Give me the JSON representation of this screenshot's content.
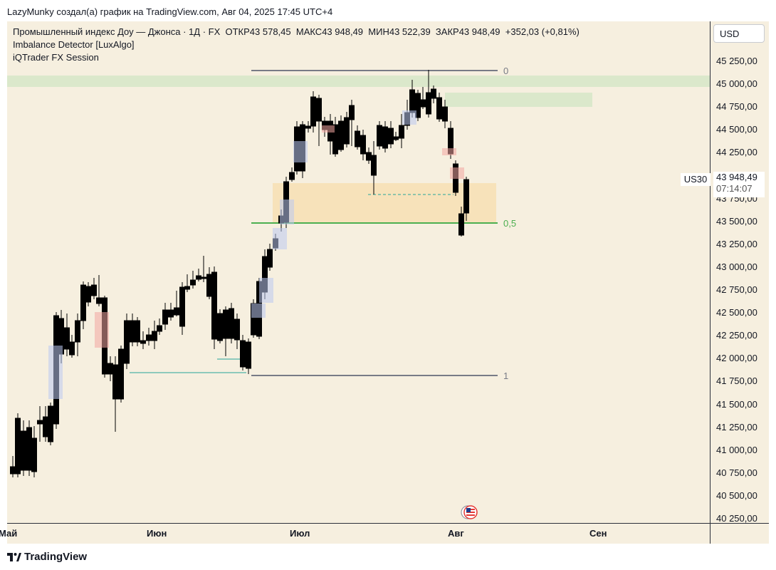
{
  "header": {
    "attribution": "LazyMunky создал(а) график на TradingView.com, Авг 04, 2025 17:45 UTC+4"
  },
  "legend": {
    "symbol_line": "Промышленный индекс Доу — Джонса · 1Д · FX",
    "open_label": "ОТКР",
    "open_value": "43 578,45",
    "high_label": "МАКС",
    "high_value": "43 948,49",
    "low_label": "МИН",
    "low_value": "43 522,39",
    "close_label": "ЗАКР",
    "close_value": "43 948,49",
    "change": "+352,03 (+0,81%)",
    "indicator1": "Imbalance Detector [LuxAlgo]",
    "indicator2": "iQTrader FX Session"
  },
  "currency": "USD",
  "symbol_tag": "US30",
  "price_tag": {
    "price": "43 948,49",
    "countdown": "07:14:07"
  },
  "y_axis": [
    "45 250,00",
    "45 000,00",
    "44 750,00",
    "44 500,00",
    "44 250,00",
    "44 000,00",
    "43 750,00",
    "43 500,00",
    "43 250,00",
    "43 000,00",
    "42 750,00",
    "42 500,00",
    "42 250,00",
    "42 000,00",
    "41 750,00",
    "41 500,00",
    "41 250,00",
    "41 000,00",
    "40 750,00",
    "40 500,00",
    "40 250,00"
  ],
  "x_axis": [
    "Май",
    "Июн",
    "Июл",
    "Авг",
    "Сен"
  ],
  "fib_levels": {
    "top": "0",
    "mid": "0,5",
    "bottom": "1"
  },
  "footer": {
    "brand": "TradingView"
  },
  "colors": {
    "background": "#f6efdf",
    "bull": "#ffffff",
    "bear": "#000000",
    "fib_mid": "#4caf50",
    "fib_line": "#787b86",
    "ob_zone": "#f7dfb0",
    "supply_zone": "#d6e6c8"
  }
}
